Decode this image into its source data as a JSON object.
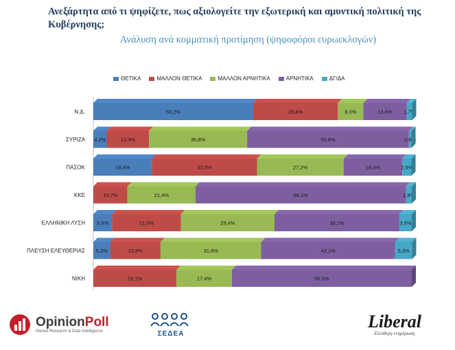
{
  "title": "Ανεξάρτητα από τι ψηφίζετε, πως αξιολογείτε την εξωτερική και αμυντική πολιτική της Κυβέρνησης;",
  "subtitle": "Ανάλυση ανά κομματική προτίμηση (ψηφοφόροι ευρωεκλογών)",
  "colors": {
    "positive": "#4a7ebb",
    "more_positive": "#be4b48",
    "more_negative": "#98b954",
    "negative": "#7d5fa0",
    "dk_na": "#46a8c6"
  },
  "chart_data": {
    "type": "bar",
    "orientation": "horizontal",
    "stacked": true,
    "title": "Ανεξάρτητα από τι ψηφίζετε, πως αξιολογείτε την εξωτερική και αμυντική πολιτική της Κυβέρνησης;",
    "subtitle": "Ανάλυση ανά κομματική προτίμηση (ψηφοφόροι ευρωεκλογών)",
    "categories": [
      "Ν.Δ.",
      "ΣΥΡΙΖΑ",
      "ΠΑΣΟΚ",
      "ΚΚΕ",
      "ΕΛΛΗΝΙΚΗ ΛΥΣΗ",
      "ΠΛΕΥΣΗ ΕΛΕΥΘΕΡΙΑΣ",
      "ΝΙΚΗ"
    ],
    "series": [
      {
        "name": "ΘΕΤΙΚΑ",
        "color": "#4a7ebb",
        "values": [
          50.2,
          4.2,
          18.4,
          0,
          5.9,
          5.3,
          0
        ],
        "labels": [
          "50,2%",
          "4,2%",
          "18,4%",
          "",
          "5,9%",
          "5,3%",
          ""
        ]
      },
      {
        "name": "ΜΑΛΛΟΝ ΘΕΤΙΚΑ",
        "color": "#be4b48",
        "values": [
          26.6,
          13.3,
          33.0,
          10.7,
          21.6,
          15.8,
          26.1
        ],
        "labels": [
          "26,6%",
          "13,3%",
          "33,0%",
          "10,7%",
          "21,6%",
          "15,8%",
          "26,1%"
        ]
      },
      {
        "name": "ΜΑΛΛΟΝ ΑΡΝΗΤΙΚΑ",
        "color": "#98b954",
        "values": [
          8.0,
          30.8,
          27.2,
          21.4,
          29.4,
          31.6,
          17.4
        ],
        "labels": [
          "8,0%",
          "30,8%",
          "27,2%",
          "21,4%",
          "29,4%",
          "31,6%",
          "17,4%"
        ]
      },
      {
        "name": "ΑΡΝΗΤΙΚΑ",
        "color": "#7d5fa0",
        "values": [
          13.6,
          50.8,
          18.4,
          66.1,
          39.2,
          42.1,
          56.5
        ],
        "labels": [
          "13,6%",
          "50,8%",
          "18,4%",
          "66,1%",
          "39,2%",
          "42,1%",
          "56,5%"
        ]
      },
      {
        "name": "ΔΓ/ΔΑ",
        "color": "#46a8c6",
        "values": [
          1.7,
          0.8,
          2.9,
          1.8,
          3.9,
          5.3,
          0
        ],
        "labels": [
          "1,7%",
          "0,8%",
          "2,9%",
          "1,8%",
          "3,9%",
          "5,3%",
          ""
        ]
      }
    ],
    "xlim": [
      0,
      100
    ],
    "legend": "top",
    "grid": false
  },
  "footer": {
    "opinionpoll_name_a": "Opinion",
    "opinionpoll_name_b": "Poll",
    "opinionpoll_tagline": "Market Research & Data Intelligence",
    "seaea_name": "ΣΕΔΕΑ",
    "liberal_name": "Liberal",
    "liberal_tagline": "Ελεύθερη ενημέρωση"
  }
}
